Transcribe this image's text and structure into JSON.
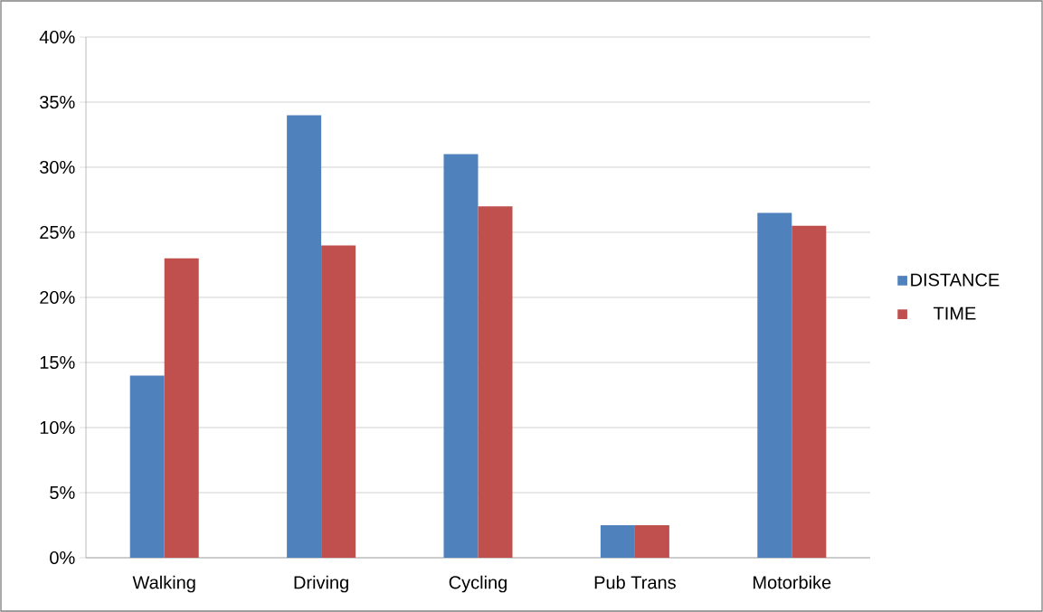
{
  "chart_data": {
    "type": "bar",
    "categories": [
      "Walking",
      "Driving",
      "Cycling",
      "Pub Trans",
      "Motorbike"
    ],
    "series": [
      {
        "name": "DISTANCE",
        "color": "#4f81bd",
        "values": [
          14,
          34,
          31,
          2.5,
          26.5
        ]
      },
      {
        "name": "TIME",
        "color": "#c0504d",
        "values": [
          23,
          24,
          27,
          2.5,
          25.5
        ]
      }
    ],
    "ylim": [
      0,
      40
    ],
    "yticks": [
      {
        "value": 0,
        "label": "0%"
      },
      {
        "value": 5,
        "label": "5%"
      },
      {
        "value": 10,
        "label": "10%"
      },
      {
        "value": 15,
        "label": "15%"
      },
      {
        "value": 20,
        "label": "20%"
      },
      {
        "value": 25,
        "label": "25%"
      },
      {
        "value": 30,
        "label": "30%"
      },
      {
        "value": 35,
        "label": "35%"
      },
      {
        "value": 40,
        "label": "40%"
      }
    ],
    "grid": "y",
    "legend": "right"
  }
}
